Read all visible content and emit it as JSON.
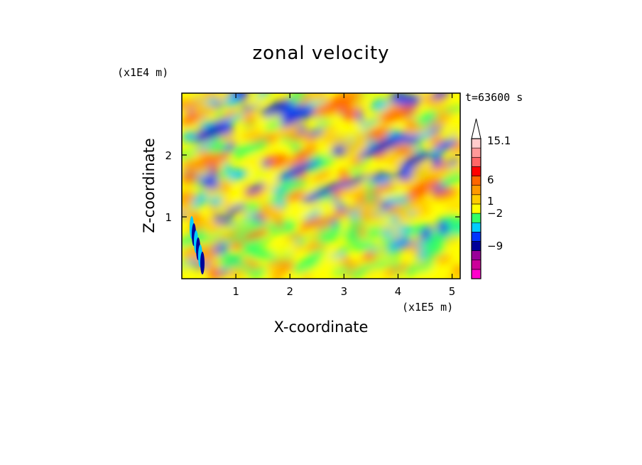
{
  "chart_data": {
    "type": "heatmap",
    "title": "zonal velocity",
    "xlabel": "X-coordinate",
    "ylabel": "Z-coordinate",
    "x_unit": "(x1E5 m)",
    "z_unit": "(x1E4 m)",
    "time_label": "t=63600 s",
    "xlim": [
      0,
      5.15
    ],
    "zlim": [
      0,
      3.0
    ],
    "x_ticks": [
      1,
      2,
      3,
      4,
      5
    ],
    "x_tick_labels": [
      "1",
      "2",
      "3",
      "4",
      "5"
    ],
    "z_ticks": [
      1,
      2
    ],
    "z_tick_labels": [
      "1",
      "2"
    ],
    "colorbar": {
      "labels": [
        {
          "value": 15.1,
          "text": "15.1"
        },
        {
          "value": 6,
          "text": "6"
        },
        {
          "value": 1,
          "text": "1"
        },
        {
          "value": -2,
          "text": "−2"
        },
        {
          "value": -9,
          "text": "−9"
        }
      ],
      "colors": [
        "#ff00cc",
        "#cc0099",
        "#990099",
        "#000099",
        "#0033ff",
        "#00ccff",
        "#33ff66",
        "#ffff00",
        "#ffcc00",
        "#ff9900",
        "#ff6600",
        "#ff0000",
        "#ff6666",
        "#ff9999",
        "#ffcccc",
        "#ffffff"
      ]
    }
  }
}
